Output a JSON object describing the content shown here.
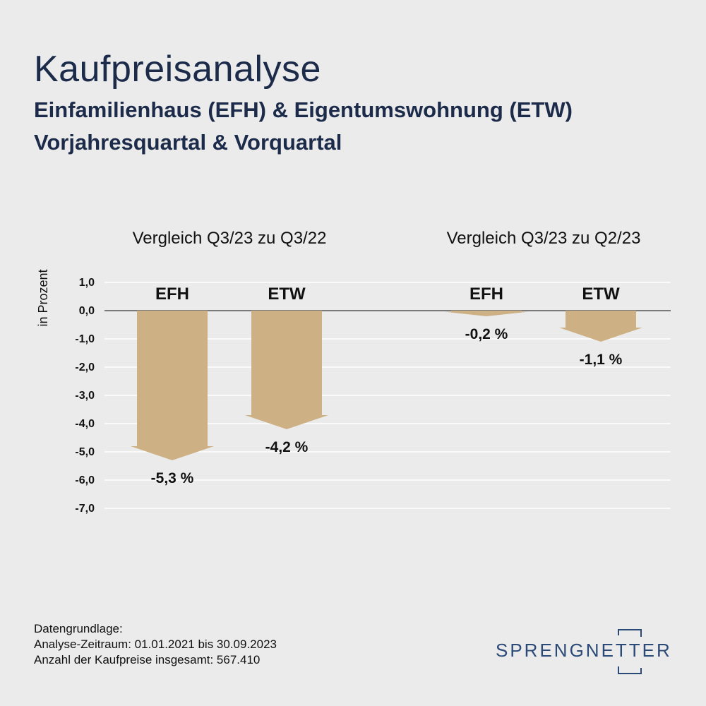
{
  "header": {
    "title": "Kaufpreisanalyse",
    "subtitle_line1": "Einfamilienhaus (EFH) & Eigentumswohnung (ETW)",
    "subtitle_line2": "Vorjahresquartal & Vorquartal"
  },
  "chart_data": {
    "type": "bar",
    "ylabel": "in Prozent",
    "ylim": [
      -7.0,
      1.0
    ],
    "yticks": [
      "1,0",
      "0,0",
      "-1,0",
      "-2,0",
      "-3,0",
      "-4,0",
      "-5,0",
      "-6,0",
      "-7,0"
    ],
    "ytick_values": [
      1,
      0,
      -1,
      -2,
      -3,
      -4,
      -5,
      -6,
      -7
    ],
    "grid": true,
    "bar_color": "#cdb184",
    "groups": [
      {
        "title": "Vergleich Q3/23 zu Q3/22",
        "categories": [
          "EFH",
          "ETW"
        ],
        "values": [
          -5.3,
          -4.2
        ],
        "labels": [
          "-5,3 %",
          "-4,2 %"
        ]
      },
      {
        "title": "Vergleich Q3/23 zu Q2/23",
        "categories": [
          "EFH",
          "ETW"
        ],
        "values": [
          -0.2,
          -1.1
        ],
        "labels": [
          "-0,2 %",
          "-1,1 %"
        ]
      }
    ]
  },
  "footer": {
    "line1": "Datengrundlage:",
    "line2": "Analyse-Zeitraum: 01.01.2021 bis 30.09.2023",
    "line3": "Anzahl der Kaufpreise insgesamt: 567.410"
  },
  "logo": {
    "text": "SPRENGNETTER",
    "color": "#2c4a78"
  }
}
